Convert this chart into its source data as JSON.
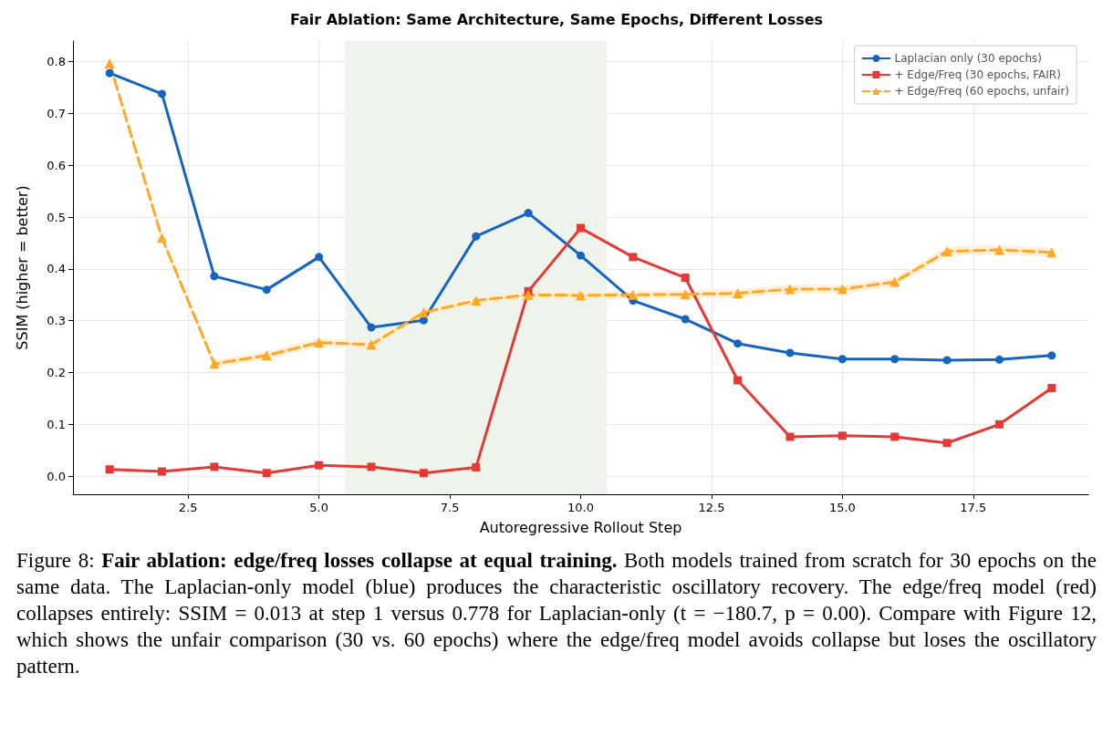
{
  "chart_data": {
    "type": "line",
    "title": "Fair Ablation: Same Architecture, Same Epochs, Different Losses",
    "xlabel": "Autoregressive Rollout Step",
    "ylabel": "SSIM (higher = better)",
    "x": [
      1,
      2,
      3,
      4,
      5,
      6,
      7,
      8,
      9,
      10,
      11,
      12,
      13,
      14,
      15,
      16,
      17,
      18,
      19
    ],
    "series": [
      {
        "name": "Laplacian only (30 epochs)",
        "color": "#1565c0",
        "marker": "circle",
        "line_style": "solid",
        "values": [
          0.778,
          0.738,
          0.386,
          0.36,
          0.423,
          0.287,
          0.301,
          0.463,
          0.508,
          0.426,
          0.339,
          0.303,
          0.256,
          0.238,
          0.226,
          0.226,
          0.224,
          0.225,
          0.233
        ]
      },
      {
        "name": "+ Edge/Freq (30 epochs, FAIR)",
        "color": "#e53935",
        "marker": "square",
        "line_style": "solid",
        "values": [
          0.013,
          0.009,
          0.018,
          0.006,
          0.021,
          0.018,
          0.006,
          0.017,
          0.357,
          0.479,
          0.423,
          0.383,
          0.185,
          0.076,
          0.078,
          0.076,
          0.064,
          0.1,
          0.17
        ]
      },
      {
        "name": "+ Edge/Freq (60 epochs, unfair)",
        "color": "#ffa726",
        "marker": "triangle",
        "line_style": "dashed",
        "values": [
          0.797,
          0.46,
          0.217,
          0.233,
          0.258,
          0.254,
          0.316,
          0.339,
          0.35,
          0.349,
          0.35,
          0.351,
          0.353,
          0.361,
          0.361,
          0.375,
          0.434,
          0.437,
          0.432
        ],
        "lower": [
          0.792,
          0.455,
          0.21,
          0.225,
          0.25,
          0.246,
          0.309,
          0.332,
          0.342,
          0.341,
          0.342,
          0.343,
          0.345,
          0.353,
          0.353,
          0.367,
          0.425,
          0.428,
          0.423
        ],
        "upper": [
          0.802,
          0.465,
          0.224,
          0.241,
          0.266,
          0.262,
          0.323,
          0.346,
          0.358,
          0.357,
          0.358,
          0.359,
          0.361,
          0.369,
          0.369,
          0.383,
          0.443,
          0.446,
          0.441
        ]
      }
    ],
    "bands": [
      {
        "axis": "x",
        "from": 5.5,
        "to": 10.5,
        "color": "#eef3ec"
      }
    ],
    "xlim": [
      0.3,
      19.7
    ],
    "xticks": [
      2.5,
      {
        "value": 5,
        "label": "5.0"
      },
      7.5,
      {
        "value": 10,
        "label": "10.0"
      },
      12.5,
      {
        "value": 15,
        "label": "15.0"
      },
      17.5
    ],
    "ylim": [
      -0.035,
      0.84
    ],
    "yticks": [
      {
        "value": 0,
        "label": "0.0"
      },
      0.1,
      0.2,
      0.3,
      0.4,
      0.5,
      0.6,
      0.7,
      0.8
    ],
    "grid": true,
    "legend": "top right",
    "annotations": [
      "Figure 8:",
      "Fair ablation: edge/freq losses collapse at equal training.",
      "Both models trained from scratch for 30 epochs on the same data. The Laplacian-only model (blue) produces the characteristic oscillatory recovery. The edge/freq model (red) collapses entirely: SSIM = 0.013 at step 1 versus 0.778 for Laplacian-only (t = −180.7, p = 0.00). Compare with Figure 12, which shows the unfair comparison (30 vs. 60 epochs) where the edge/freq model avoids collapse but loses the oscillatory pattern."
    ]
  }
}
